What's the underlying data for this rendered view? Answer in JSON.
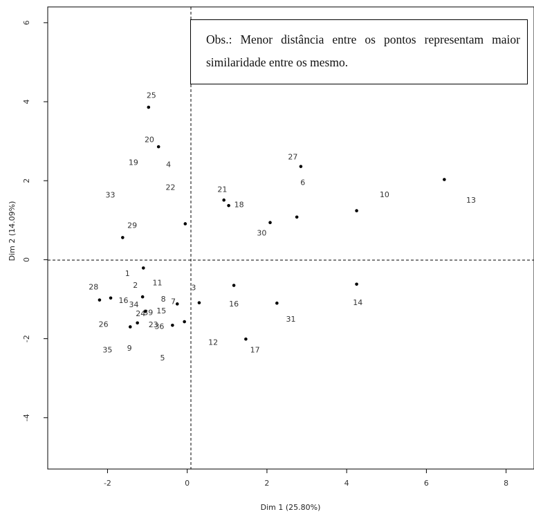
{
  "annotation": {
    "text": "Obs.: Menor distância entre os pontos representam maior similaridade entre os mesmo."
  },
  "chart_data": {
    "type": "scatter",
    "xlabel": "Dim 1  (25.80%)",
    "ylabel": "Dim 2 (14.09%)",
    "xlim": [
      -3.5,
      8.7
    ],
    "ylim": [
      -5.3,
      6.4
    ],
    "x_ticks": [
      "-2",
      "0",
      "2",
      "4",
      "6",
      "8"
    ],
    "x_tick_values": [
      -2,
      0,
      2,
      4,
      6,
      8
    ],
    "y_ticks": [
      "-4",
      "-2",
      "0",
      "2",
      "4",
      "6"
    ],
    "y_tick_values": [
      -4,
      -2,
      0,
      2,
      4,
      6
    ],
    "reference_lines": {
      "x": 0,
      "y": 0,
      "style": "dashed"
    },
    "grid": false,
    "points": [
      {
        "x": -0.97,
        "y": 3.86
      },
      {
        "x": -0.72,
        "y": 2.86
      },
      {
        "x": 2.85,
        "y": 2.36
      },
      {
        "x": 6.45,
        "y": 2.03
      },
      {
        "x": 0.92,
        "y": 1.51
      },
      {
        "x": 1.04,
        "y": 1.37
      },
      {
        "x": 4.25,
        "y": 1.24
      },
      {
        "x": 2.75,
        "y": 1.08
      },
      {
        "x": 2.08,
        "y": 0.94
      },
      {
        "x": -0.05,
        "y": 0.91
      },
      {
        "x": -1.62,
        "y": 0.56
      },
      {
        "x": -1.1,
        "y": -0.21
      },
      {
        "x": 1.17,
        "y": -0.65
      },
      {
        "x": 4.25,
        "y": -0.62
      },
      {
        "x": -2.2,
        "y": -1.02
      },
      {
        "x": -1.92,
        "y": -0.97
      },
      {
        "x": -1.12,
        "y": -0.94
      },
      {
        "x": 0.3,
        "y": -1.09
      },
      {
        "x": -0.25,
        "y": -1.12
      },
      {
        "x": 2.25,
        "y": -1.1
      },
      {
        "x": -1.05,
        "y": -1.31
      },
      {
        "x": -1.25,
        "y": -1.6
      },
      {
        "x": -0.07,
        "y": -1.57
      },
      {
        "x": -0.37,
        "y": -1.66
      },
      {
        "x": -1.43,
        "y": -1.7
      },
      {
        "x": 1.47,
        "y": -2.01
      }
    ],
    "labels": [
      {
        "text": "25",
        "x": -0.9,
        "y": 4.15
      },
      {
        "text": "20",
        "x": -0.95,
        "y": 3.03
      },
      {
        "text": "19",
        "x": -1.35,
        "y": 2.45
      },
      {
        "text": "4",
        "x": -0.47,
        "y": 2.4
      },
      {
        "text": "33",
        "x": -1.93,
        "y": 1.63
      },
      {
        "text": "22",
        "x": -0.42,
        "y": 1.82
      },
      {
        "text": "29",
        "x": -1.38,
        "y": 0.86
      },
      {
        "text": "27",
        "x": 2.65,
        "y": 2.59
      },
      {
        "text": "6",
        "x": 2.9,
        "y": 1.94
      },
      {
        "text": "21",
        "x": 0.88,
        "y": 1.77
      },
      {
        "text": "18",
        "x": 1.3,
        "y": 1.38
      },
      {
        "text": "30",
        "x": 1.87,
        "y": 0.66
      },
      {
        "text": "10",
        "x": 4.95,
        "y": 1.64
      },
      {
        "text": "13",
        "x": 7.12,
        "y": 1.5
      },
      {
        "text": "1",
        "x": -1.5,
        "y": -0.36
      },
      {
        "text": "2",
        "x": -1.3,
        "y": -0.66
      },
      {
        "text": "11",
        "x": -0.75,
        "y": -0.6
      },
      {
        "text": "3",
        "x": 0.16,
        "y": -0.72
      },
      {
        "text": "28",
        "x": -2.35,
        "y": -0.7
      },
      {
        "text": "16",
        "x": -1.6,
        "y": -1.04
      },
      {
        "text": "34",
        "x": -1.34,
        "y": -1.15
      },
      {
        "text": "8",
        "x": -0.6,
        "y": -1.01
      },
      {
        "text": "7",
        "x": -0.35,
        "y": -1.07
      },
      {
        "text": "16",
        "x": 1.17,
        "y": -1.13
      },
      {
        "text": "14",
        "x": 4.28,
        "y": -1.1
      },
      {
        "text": "24",
        "x": -1.17,
        "y": -1.38
      },
      {
        "text": "39",
        "x": -0.98,
        "y": -1.35
      },
      {
        "text": "15",
        "x": -0.65,
        "y": -1.31
      },
      {
        "text": "26",
        "x": -2.1,
        "y": -1.65
      },
      {
        "text": "23",
        "x": -0.85,
        "y": -1.66
      },
      {
        "text": "36",
        "x": -0.7,
        "y": -1.7
      },
      {
        "text": "31",
        "x": 2.6,
        "y": -1.52
      },
      {
        "text": "12",
        "x": 0.65,
        "y": -2.1
      },
      {
        "text": "35",
        "x": -2.0,
        "y": -2.3
      },
      {
        "text": "9",
        "x": -1.45,
        "y": -2.25
      },
      {
        "text": "17",
        "x": 1.7,
        "y": -2.3
      },
      {
        "text": "5",
        "x": -0.62,
        "y": -2.5
      }
    ]
  }
}
